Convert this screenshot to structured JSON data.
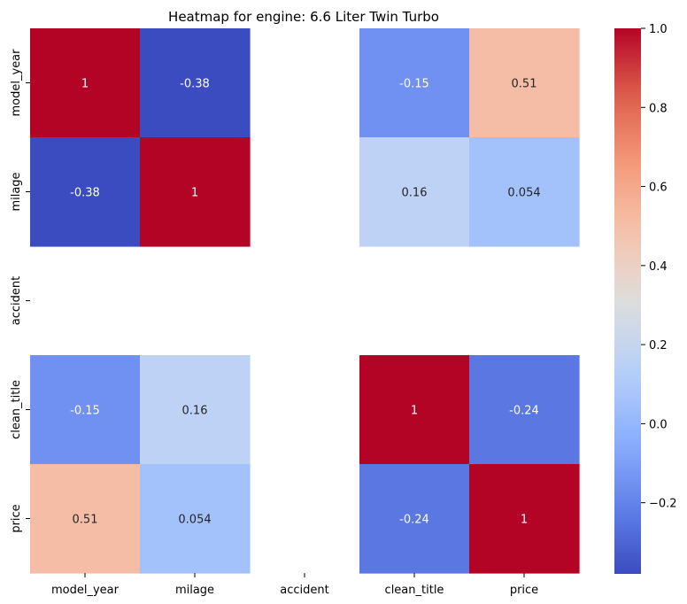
{
  "chart_data": {
    "type": "heatmap",
    "title": "Heatmap for engine: 6.6 Liter Twin Turbo",
    "x_labels": [
      "model_year",
      "milage",
      "accident",
      "clean_title",
      "price"
    ],
    "y_labels": [
      "model_year",
      "milage",
      "accident",
      "clean_title",
      "price"
    ],
    "values": [
      [
        1,
        -0.38,
        null,
        -0.15,
        0.51
      ],
      [
        -0.38,
        1,
        null,
        0.16,
        0.054
      ],
      [
        null,
        null,
        null,
        null,
        null
      ],
      [
        -0.15,
        0.16,
        null,
        1,
        -0.24
      ],
      [
        0.51,
        0.054,
        null,
        -0.24,
        1
      ]
    ],
    "annotations": [
      [
        "1",
        "-0.38",
        "",
        "-0.15",
        "0.51"
      ],
      [
        "-0.38",
        "1",
        "",
        "0.16",
        "0.054"
      ],
      [
        "",
        "",
        "",
        "",
        ""
      ],
      [
        "-0.15",
        "0.16",
        "",
        "1",
        "-0.24"
      ],
      [
        "0.51",
        "0.054",
        "",
        "-0.24",
        "1"
      ]
    ],
    "colormap": "coolwarm",
    "vmin": -0.38,
    "vmax": 1.0,
    "colorbar_ticks": [
      {
        "value": 1.0,
        "label": "1.0"
      },
      {
        "value": 0.8,
        "label": "0.8"
      },
      {
        "value": 0.6,
        "label": "0.6"
      },
      {
        "value": 0.4,
        "label": "0.4"
      },
      {
        "value": 0.2,
        "label": "0.2"
      },
      {
        "value": 0.0,
        "label": "0.0"
      },
      {
        "value": -0.2,
        "label": "−0.2"
      }
    ],
    "colors": {
      "low": "#3b4cc0",
      "mid": "#dddddd",
      "high": "#b40426",
      "text_dark": "#262626",
      "text_light": "#ffffff"
    }
  }
}
